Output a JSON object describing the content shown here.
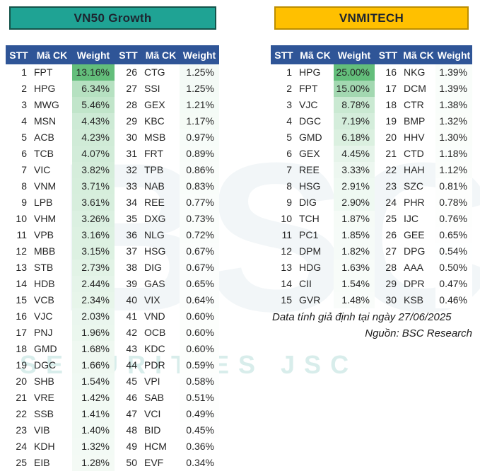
{
  "tables": [
    {
      "id": "vn50-growth-table",
      "title": "VN50 Growth",
      "title_bg": "#1FA394",
      "title_border": "#14534A",
      "header_bg": "#2F5597",
      "columns": [
        "STT",
        "Mã CK",
        "Weight"
      ],
      "scale_from": "#FFFFFF",
      "scale_to": "#63BE7B",
      "split": 25,
      "entries": [
        [
          1,
          "FPT",
          "13.16%"
        ],
        [
          2,
          "HPG",
          "6.34%"
        ],
        [
          3,
          "MWG",
          "5.46%"
        ],
        [
          4,
          "MSN",
          "4.43%"
        ],
        [
          5,
          "ACB",
          "4.23%"
        ],
        [
          6,
          "TCB",
          "4.07%"
        ],
        [
          7,
          "VIC",
          "3.82%"
        ],
        [
          8,
          "VNM",
          "3.71%"
        ],
        [
          9,
          "LPB",
          "3.61%"
        ],
        [
          10,
          "VHM",
          "3.26%"
        ],
        [
          11,
          "VPB",
          "3.16%"
        ],
        [
          12,
          "MBB",
          "3.15%"
        ],
        [
          13,
          "STB",
          "2.73%"
        ],
        [
          14,
          "HDB",
          "2.44%"
        ],
        [
          15,
          "VCB",
          "2.34%"
        ],
        [
          16,
          "VJC",
          "2.03%"
        ],
        [
          17,
          "PNJ",
          "1.96%"
        ],
        [
          18,
          "GMD",
          "1.68%"
        ],
        [
          19,
          "DGC",
          "1.66%"
        ],
        [
          20,
          "SHB",
          "1.54%"
        ],
        [
          21,
          "VRE",
          "1.42%"
        ],
        [
          22,
          "SSB",
          "1.41%"
        ],
        [
          23,
          "VIB",
          "1.40%"
        ],
        [
          24,
          "KDH",
          "1.32%"
        ],
        [
          25,
          "EIB",
          "1.28%"
        ],
        [
          26,
          "CTG",
          "1.25%"
        ],
        [
          27,
          "SSI",
          "1.25%"
        ],
        [
          28,
          "GEX",
          "1.21%"
        ],
        [
          29,
          "KBC",
          "1.17%"
        ],
        [
          30,
          "MSB",
          "0.97%"
        ],
        [
          31,
          "FRT",
          "0.89%"
        ],
        [
          32,
          "TPB",
          "0.86%"
        ],
        [
          33,
          "NAB",
          "0.83%"
        ],
        [
          34,
          "REE",
          "0.77%"
        ],
        [
          35,
          "DXG",
          "0.73%"
        ],
        [
          36,
          "NLG",
          "0.72%"
        ],
        [
          37,
          "HSG",
          "0.67%"
        ],
        [
          38,
          "DIG",
          "0.67%"
        ],
        [
          39,
          "GAS",
          "0.65%"
        ],
        [
          40,
          "VIX",
          "0.64%"
        ],
        [
          41,
          "VND",
          "0.60%"
        ],
        [
          42,
          "OCB",
          "0.60%"
        ],
        [
          43,
          "KDC",
          "0.60%"
        ],
        [
          44,
          "PDR",
          "0.59%"
        ],
        [
          45,
          "VPI",
          "0.58%"
        ],
        [
          46,
          "SAB",
          "0.51%"
        ],
        [
          47,
          "VCI",
          "0.49%"
        ],
        [
          48,
          "BID",
          "0.45%"
        ],
        [
          49,
          "HCM",
          "0.36%"
        ],
        [
          50,
          "EVF",
          "0.34%"
        ]
      ]
    },
    {
      "id": "vnmitech-table",
      "title": "VNMITECH",
      "title_bg": "#FFC000",
      "title_border": "#BD8E00",
      "header_bg": "#2F5597",
      "columns": [
        "STT",
        "Mã CK",
        "Weight"
      ],
      "scale_from": "#FFFFFF",
      "scale_to": "#63BE7B",
      "split": 15,
      "entries": [
        [
          1,
          "HPG",
          "25.00%"
        ],
        [
          2,
          "FPT",
          "15.00%"
        ],
        [
          3,
          "VJC",
          "8.78%"
        ],
        [
          4,
          "DGC",
          "7.19%"
        ],
        [
          5,
          "GMD",
          "6.18%"
        ],
        [
          6,
          "GEX",
          "4.45%"
        ],
        [
          7,
          "REE",
          "3.33%"
        ],
        [
          8,
          "HSG",
          "2.91%"
        ],
        [
          9,
          "DIG",
          "2.90%"
        ],
        [
          10,
          "TCH",
          "1.87%"
        ],
        [
          11,
          "PC1",
          "1.85%"
        ],
        [
          12,
          "DPM",
          "1.82%"
        ],
        [
          13,
          "HDG",
          "1.63%"
        ],
        [
          14,
          "CII",
          "1.54%"
        ],
        [
          15,
          "GVR",
          "1.48%"
        ],
        [
          16,
          "NKG",
          "1.39%"
        ],
        [
          17,
          "DCM",
          "1.39%"
        ],
        [
          18,
          "CTR",
          "1.38%"
        ],
        [
          19,
          "BMP",
          "1.32%"
        ],
        [
          20,
          "HHV",
          "1.30%"
        ],
        [
          21,
          "CTD",
          "1.18%"
        ],
        [
          22,
          "HAH",
          "1.12%"
        ],
        [
          23,
          "SZC",
          "0.81%"
        ],
        [
          24,
          "PHR",
          "0.78%"
        ],
        [
          25,
          "IJC",
          "0.76%"
        ],
        [
          26,
          "GEE",
          "0.65%"
        ],
        [
          27,
          "DPG",
          "0.54%"
        ],
        [
          28,
          "AAA",
          "0.50%"
        ],
        [
          29,
          "DPR",
          "0.47%"
        ],
        [
          30,
          "KSB",
          "0.46%"
        ]
      ]
    }
  ],
  "footnotes": {
    "assumption": "Data tính giả định tại ngày 27/06/2025",
    "source": "Nguồn: BSC Research"
  },
  "watermark": {
    "big": "BSC",
    "small": "SECURITIES JSC"
  }
}
